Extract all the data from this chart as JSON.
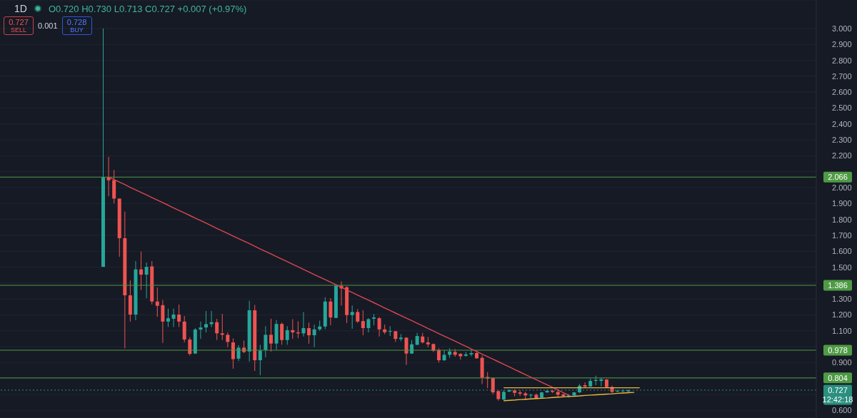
{
  "chart_data": {
    "type": "candlestick",
    "title": "1D",
    "subtitle": "O0.720 H0.730 L0.713 C0.727 +0.007 (+0.97%)",
    "annotations": [
      "0.727\nSELL",
      "0.001",
      "0.728\nBUY"
    ],
    "categories": [
      null,
      null,
      null,
      null,
      null,
      null,
      null,
      null,
      null,
      null,
      null,
      null,
      null,
      null,
      null,
      null,
      null,
      null,
      null,
      null,
      null,
      null,
      null,
      null,
      null,
      null,
      null,
      null,
      null,
      null,
      null,
      null,
      null,
      null,
      null,
      null,
      null,
      null,
      null,
      null,
      null,
      null,
      null,
      null,
      null,
      null,
      null,
      null,
      null,
      null,
      null,
      null,
      null,
      null,
      null,
      null,
      null,
      null,
      null,
      null,
      null,
      null,
      null,
      null,
      null,
      null,
      null,
      null,
      null,
      null,
      null,
      null,
      null,
      null,
      null,
      null,
      null,
      null,
      null,
      null,
      null,
      null,
      null,
      null,
      null,
      null,
      null,
      null,
      null,
      null,
      null,
      null,
      null,
      null,
      null,
      null,
      null,
      null,
      null,
      null
    ],
    "ohlc": [
      [
        1.502,
        3.0,
        1.502,
        2.066
      ],
      [
        2.066,
        2.193,
        1.946,
        2.046
      ],
      [
        2.046,
        2.111,
        1.901,
        1.931
      ],
      [
        1.931,
        1.931,
        1.565,
        1.682
      ],
      [
        1.682,
        1.849,
        0.99,
        1.323
      ],
      [
        1.323,
        1.417,
        1.158,
        1.202
      ],
      [
        1.202,
        1.538,
        1.166,
        1.486
      ],
      [
        1.486,
        1.598,
        1.356,
        1.453
      ],
      [
        1.453,
        1.529,
        1.305,
        1.502
      ],
      [
        1.505,
        1.538,
        1.266,
        1.284
      ],
      [
        1.284,
        1.372,
        1.188,
        1.257
      ],
      [
        1.261,
        1.293,
        1.024,
        1.158
      ],
      [
        1.158,
        1.239,
        1.124,
        1.179
      ],
      [
        1.176,
        1.24,
        1.124,
        1.202
      ],
      [
        1.202,
        1.265,
        1.124,
        1.158
      ],
      [
        1.158,
        1.193,
        1.027,
        1.045
      ],
      [
        1.045,
        1.06,
        0.945,
        0.955
      ],
      [
        0.957,
        1.117,
        0.955,
        1.108
      ],
      [
        1.108,
        1.158,
        1.049,
        1.121
      ],
      [
        1.121,
        1.224,
        1.09,
        1.142
      ],
      [
        1.142,
        1.224,
        1.124,
        1.154
      ],
      [
        1.154,
        1.175,
        1.042,
        1.084
      ],
      [
        1.084,
        1.206,
        1.042,
        1.075
      ],
      [
        1.075,
        1.09,
        0.997,
        1.03
      ],
      [
        1.027,
        1.052,
        0.862,
        0.922
      ],
      [
        0.925,
        1.01,
        0.91,
        0.994
      ],
      [
        0.994,
        1.039,
        0.96,
        0.967
      ],
      [
        0.97,
        1.288,
        0.907,
        1.229
      ],
      [
        1.229,
        1.263,
        0.848,
        0.915
      ],
      [
        0.915,
        1.012,
        0.821,
        0.975
      ],
      [
        0.979,
        1.129,
        0.934,
        1.075
      ],
      [
        1.075,
        1.176,
        0.97,
        1.02
      ],
      [
        1.02,
        1.167,
        0.982,
        1.143
      ],
      [
        1.143,
        1.152,
        1.012,
        1.042
      ],
      [
        1.042,
        1.129,
        1.012,
        1.104
      ],
      [
        1.104,
        1.173,
        1.049,
        1.09
      ],
      [
        1.09,
        1.16,
        1.054,
        1.084
      ],
      [
        1.084,
        1.218,
        1.064,
        1.117
      ],
      [
        1.117,
        1.152,
        1.019,
        1.072
      ],
      [
        1.072,
        1.14,
        0.997,
        1.109
      ],
      [
        1.109,
        1.164,
        1.1,
        1.127
      ],
      [
        1.127,
        1.311,
        1.11,
        1.284
      ],
      [
        1.284,
        1.305,
        1.135,
        1.184
      ],
      [
        1.181,
        1.393,
        1.18,
        1.383
      ],
      [
        1.383,
        1.411,
        1.259,
        1.366
      ],
      [
        1.374,
        1.38,
        1.149,
        1.199
      ],
      [
        1.199,
        1.259,
        1.113,
        1.218
      ],
      [
        1.218,
        1.236,
        1.15,
        1.158
      ],
      [
        1.161,
        1.229,
        1.072,
        1.117
      ],
      [
        1.117,
        1.18,
        1.09,
        1.173
      ],
      [
        1.176,
        1.206,
        1.135,
        1.184
      ],
      [
        1.179,
        1.186,
        1.064,
        1.109
      ],
      [
        1.109,
        1.139,
        1.079,
        1.091
      ],
      [
        1.095,
        1.129,
        1.067,
        1.099
      ],
      [
        1.097,
        1.1,
        1.03,
        1.049
      ],
      [
        1.048,
        1.079,
        1.034,
        1.057
      ],
      [
        1.057,
        1.06,
        0.885,
        0.957
      ],
      [
        0.957,
        1.042,
        0.955,
        1.015
      ],
      [
        1.012,
        1.087,
        1.01,
        1.067
      ],
      [
        1.064,
        1.087,
        1.02,
        1.027
      ],
      [
        1.027,
        1.061,
        0.997,
        1.015
      ],
      [
        1.017,
        1.02,
        0.967,
        0.975
      ],
      [
        0.979,
        0.99,
        0.9,
        0.915
      ],
      [
        0.915,
        0.979,
        0.91,
        0.949
      ],
      [
        0.949,
        0.99,
        0.93,
        0.97
      ],
      [
        0.967,
        0.985,
        0.937,
        0.949
      ],
      [
        0.955,
        0.96,
        0.919,
        0.94
      ],
      [
        0.943,
        0.967,
        0.937,
        0.952
      ],
      [
        0.952,
        0.982,
        0.94,
        0.96
      ],
      [
        0.96,
        0.975,
        0.925,
        0.927
      ],
      [
        0.93,
        0.945,
        0.765,
        0.806
      ],
      [
        0.81,
        0.84,
        0.74,
        0.8
      ],
      [
        0.803,
        0.805,
        0.701,
        0.713
      ],
      [
        0.721,
        0.725,
        0.661,
        0.671
      ],
      [
        0.668,
        0.728,
        0.665,
        0.716
      ],
      [
        0.718,
        0.73,
        0.715,
        0.728
      ],
      [
        0.725,
        0.732,
        0.688,
        0.71
      ],
      [
        0.713,
        0.727,
        0.69,
        0.705
      ],
      [
        0.707,
        0.716,
        0.665,
        0.694
      ],
      [
        0.694,
        0.704,
        0.675,
        0.698
      ],
      [
        0.698,
        0.707,
        0.672,
        0.676
      ],
      [
        0.679,
        0.716,
        0.676,
        0.713
      ],
      [
        0.713,
        0.728,
        0.709,
        0.723
      ],
      [
        0.723,
        0.73,
        0.709,
        0.716
      ],
      [
        0.716,
        0.73,
        0.686,
        0.698
      ],
      [
        0.701,
        0.705,
        0.684,
        0.689
      ],
      [
        0.686,
        0.701,
        0.68,
        0.694
      ],
      [
        0.694,
        0.716,
        0.692,
        0.713
      ],
      [
        0.713,
        0.766,
        0.71,
        0.755
      ],
      [
        0.758,
        0.776,
        0.74,
        0.749
      ],
      [
        0.75,
        0.8,
        0.748,
        0.785
      ],
      [
        0.785,
        0.818,
        0.758,
        0.791
      ],
      [
        0.785,
        0.806,
        0.75,
        0.795
      ],
      [
        0.794,
        0.796,
        0.742,
        0.746
      ],
      [
        0.746,
        0.755,
        0.706,
        0.716
      ],
      [
        0.719,
        0.73,
        0.714,
        0.723
      ],
      [
        0.72,
        0.732,
        0.714,
        0.725
      ],
      [
        0.72,
        0.73,
        0.713,
        0.727
      ],
      null,
      null
    ],
    "colors": [
      "#26a69a",
      "#ef5350",
      "#ef5350",
      "#ef5350",
      "#ef5350",
      "#ef5350",
      "#26a69a",
      "#ef5350",
      "#26a69a",
      "#ef5350",
      "#ef5350",
      "#ef5350",
      "#26a69a",
      "#26a69a",
      "#ef5350",
      "#ef5350",
      "#ef5350",
      "#26a69a",
      "#26a69a",
      "#26a69a",
      "#26a69a",
      "#ef5350",
      "#ef5350",
      "#ef5350",
      "#ef5350",
      "#26a69a",
      "#ef5350",
      "#26a69a",
      "#ef5350",
      "#26a69a",
      "#26a69a",
      "#ef5350",
      "#26a69a",
      "#ef5350",
      "#26a69a",
      "#ef5350",
      "#ef5350",
      "#26a69a",
      "#ef5350",
      "#26a69a",
      "#26a69a",
      "#26a69a",
      "#ef5350",
      "#26a69a",
      "#ef5350",
      "#ef5350",
      "#26a69a",
      "#ef5350",
      "#ef5350",
      "#26a69a",
      "#26a69a",
      "#ef5350",
      "#ef5350",
      "#26a69a",
      "#ef5350",
      "#26a69a",
      "#ef5350",
      "#26a69a",
      "#26a69a",
      "#ef5350",
      "#ef5350",
      "#ef5350",
      "#ef5350",
      "#26a69a",
      "#26a69a",
      "#ef5350",
      "#ef5350",
      "#26a69a",
      "#26a69a",
      "#ef5350",
      "#ef5350",
      "#ef5350",
      "#ef5350",
      "#ef5350",
      "#26a69a",
      "#26a69a",
      "#ef5350",
      "#ef5350",
      "#ef5350",
      "#26a69a",
      "#ef5350",
      "#26a69a",
      "#26a69a",
      "#ef5350",
      "#ef5350",
      "#ef5350",
      "#26a69a",
      "#26a69a",
      "#26a69a",
      "#ef5350",
      "#26a69a",
      "#26a69a",
      "#26a69a",
      "#ef5350",
      "#ef5350",
      "#26a69a",
      "#26a69a",
      "#26a69a",
      null,
      null
    ],
    "series": [
      {
        "type": "line",
        "color": "#d9474f",
        "values": [
          null,
          2.066,
          2.05,
          2.034,
          2.018,
          2.001,
          1.985,
          1.969,
          1.953,
          1.937,
          1.921,
          1.905,
          1.889,
          1.872,
          1.856,
          1.84,
          1.824,
          1.808,
          1.792,
          1.776,
          1.76,
          1.743,
          1.727,
          1.711,
          1.695,
          1.679,
          1.663,
          1.647,
          1.631,
          1.614,
          1.598,
          1.582,
          1.566,
          1.55,
          1.534,
          1.518,
          1.502,
          1.485,
          1.469,
          1.453,
          1.437,
          1.421,
          1.405,
          1.389,
          1.373,
          1.356,
          1.34,
          1.324,
          1.308,
          1.292,
          1.276,
          1.26,
          1.243,
          1.227,
          1.211,
          1.195,
          1.179,
          1.163,
          1.147,
          1.131,
          1.114,
          1.098,
          1.082,
          1.066,
          1.05,
          1.034,
          1.018,
          1.002,
          0.985,
          0.969,
          0.953,
          0.937,
          0.921,
          0.905,
          0.889,
          0.873,
          0.856,
          0.84,
          0.824,
          0.808,
          0.792,
          0.776,
          0.76,
          0.744,
          0.727,
          0.711,
          0.695,
          null,
          null,
          null,
          null,
          null,
          null,
          null,
          null,
          null,
          null,
          null,
          null,
          null
        ]
      },
      {
        "type": "line",
        "color": "#e8b83e",
        "values": [
          null,
          null,
          null,
          null,
          null,
          null,
          null,
          null,
          null,
          null,
          null,
          null,
          null,
          null,
          null,
          null,
          null,
          null,
          null,
          null,
          null,
          null,
          null,
          null,
          null,
          null,
          null,
          null,
          null,
          null,
          null,
          null,
          null,
          null,
          null,
          null,
          null,
          null,
          null,
          null,
          null,
          null,
          null,
          null,
          null,
          null,
          null,
          null,
          null,
          null,
          null,
          null,
          null,
          null,
          null,
          null,
          null,
          null,
          null,
          null,
          null,
          null,
          null,
          null,
          null,
          null,
          null,
          null,
          null,
          null,
          null,
          null,
          null,
          null,
          0.742,
          0.742,
          0.742,
          0.742,
          0.742,
          0.742,
          0.742,
          0.742,
          0.742,
          0.742,
          0.742,
          0.742,
          0.742,
          0.742,
          0.742,
          0.742,
          0.742,
          0.742,
          0.742,
          0.742,
          0.742,
          0.742,
          0.742,
          0.742,
          0.742,
          0.742
        ]
      },
      {
        "type": "line",
        "color": "#e8b83e",
        "values": [
          null,
          null,
          null,
          null,
          null,
          null,
          null,
          null,
          null,
          null,
          null,
          null,
          null,
          null,
          null,
          null,
          null,
          null,
          null,
          null,
          null,
          null,
          null,
          null,
          null,
          null,
          null,
          null,
          null,
          null,
          null,
          null,
          null,
          null,
          null,
          null,
          null,
          null,
          null,
          null,
          null,
          null,
          null,
          null,
          null,
          null,
          null,
          null,
          null,
          null,
          null,
          null,
          null,
          null,
          null,
          null,
          null,
          null,
          null,
          null,
          null,
          null,
          null,
          null,
          null,
          null,
          null,
          null,
          null,
          null,
          null,
          null,
          null,
          null,
          0.661,
          0.663,
          0.665,
          0.668,
          0.67,
          0.672,
          0.674,
          0.676,
          0.678,
          0.681,
          0.683,
          0.685,
          0.687,
          0.689,
          0.691,
          0.694,
          0.696,
          0.698,
          0.7,
          0.702,
          0.704,
          0.707,
          0.709,
          0.711,
          0.713,
          null
        ]
      }
    ],
    "ylim": [
      0.552,
      3.179
    ],
    "yticks": [
      {
        "value": 0.6,
        "label": "0.600"
      },
      {
        "value": 0.7,
        "label": null
      },
      {
        "value": 0.8,
        "label": null
      },
      {
        "value": 0.9,
        "label": "0.900"
      },
      {
        "value": 1.0,
        "label": null
      },
      {
        "value": 1.1,
        "label": "1.100"
      },
      {
        "value": 1.2,
        "label": "1.200"
      },
      {
        "value": 1.3,
        "label": "1.300"
      },
      {
        "value": 1.4,
        "label": null
      },
      {
        "value": 1.5,
        "label": "1.500"
      },
      {
        "value": 1.6,
        "label": "1.600"
      },
      {
        "value": 1.7,
        "label": "1.700"
      },
      {
        "value": 1.8,
        "label": "1.800"
      },
      {
        "value": 1.9,
        "label": "1.900"
      },
      {
        "value": 2.0,
        "label": "2.000"
      },
      {
        "value": 2.1,
        "label": null
      },
      {
        "value": 2.2,
        "label": "2.200"
      },
      {
        "value": 2.3,
        "label": "2.300"
      },
      {
        "value": 2.4,
        "label": "2.400"
      },
      {
        "value": 2.5,
        "label": "2.500"
      },
      {
        "value": 2.6,
        "label": "2.600"
      },
      {
        "value": 2.7,
        "label": "2.700"
      },
      {
        "value": 2.8,
        "label": "2.800"
      },
      {
        "value": 2.9,
        "label": "2.900"
      },
      {
        "value": 3.0,
        "label": "3.000"
      }
    ],
    "grid": "y",
    "tick_labels": "y",
    "ref_lines": [
      {
        "axis": "y",
        "value": 2.066,
        "label": "2.066",
        "color": "#4f9a45"
      },
      {
        "axis": "y",
        "value": 1.386,
        "label": "1.386",
        "color": "#4f9a45"
      },
      {
        "axis": "y",
        "value": 0.978,
        "label": "0.978",
        "color": "#4f9a45"
      },
      {
        "axis": "y",
        "value": 0.804,
        "label": "0.804",
        "color": "#4f9a45"
      },
      {
        "axis": "y",
        "value": 0.727,
        "label": "0.727\n12:42:18",
        "color": "#2a8f7f",
        "line_style": "dotted"
      }
    ]
  }
}
